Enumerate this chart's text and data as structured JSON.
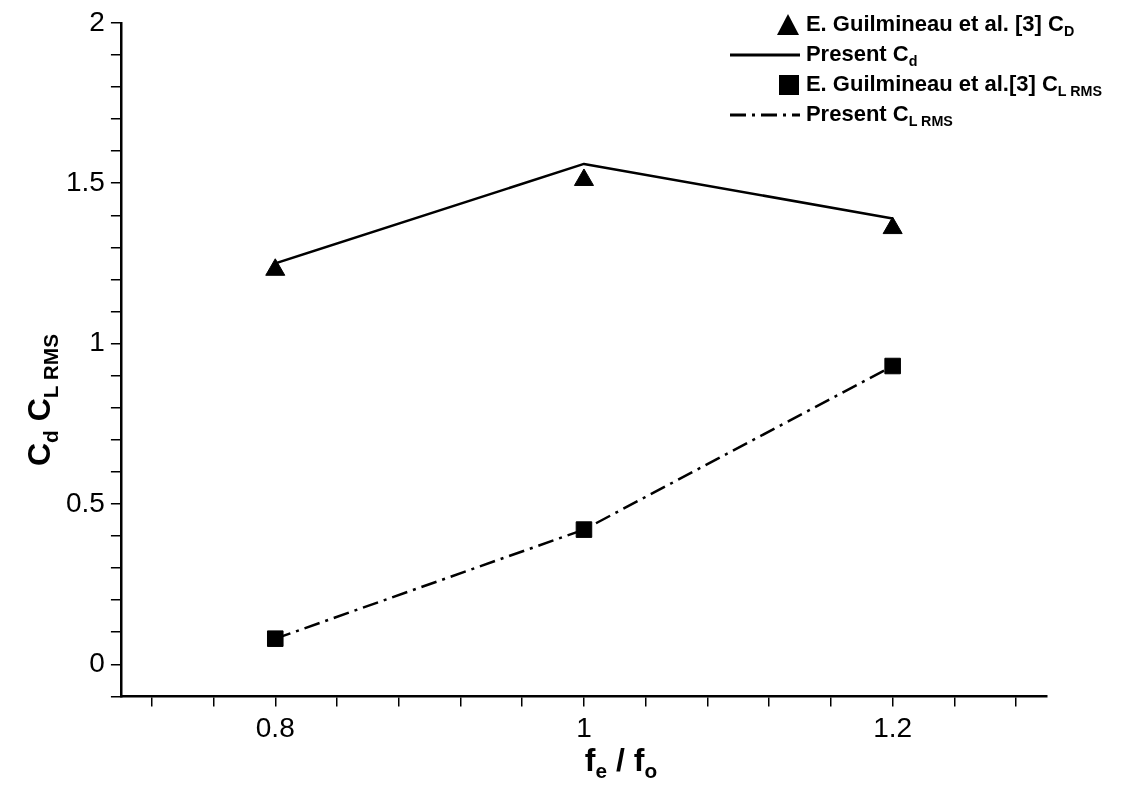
{
  "chart_data": {
    "type": "line",
    "xlabel": "f$_{e}$ / f$_{o}$",
    "ylabel": "C$_{d}$  C$_{L RMS}$",
    "x": [
      0.8,
      1.0,
      1.2
    ],
    "series": [
      {
        "name": "E. Guilmineau et al. [3] C$_{D}$",
        "type": "scatter",
        "color": "#000000",
        "marker": "triangle",
        "values": [
          1.23,
          1.51,
          1.36
        ]
      },
      {
        "name": "Present C$_{d}$",
        "type": "line",
        "color": "#000000",
        "marker": "none",
        "line_style": "solid",
        "values": [
          1.25,
          1.56,
          1.39
        ]
      },
      {
        "name": "E. Guilmineau et al.[3] C$_{L RMS}$",
        "type": "scatter",
        "color": "#000000",
        "marker": "square",
        "values": [
          0.08,
          0.42,
          0.93
        ]
      },
      {
        "name": "Present C$_{L RMS}$",
        "type": "line",
        "color": "#000000",
        "marker": "none",
        "line_style": "dashed",
        "values": [
          0.08,
          0.42,
          0.93
        ]
      }
    ],
    "xlim": [
      0.7,
      1.3
    ],
    "xticks": [
      {
        "value": 0.72,
        "label": null
      },
      {
        "value": 0.76,
        "label": null
      },
      0.8,
      {
        "value": 0.84,
        "label": null
      },
      {
        "value": 0.88,
        "label": null
      },
      {
        "value": 0.92,
        "label": null
      },
      {
        "value": 0.96,
        "label": null
      },
      1,
      {
        "value": 1.04,
        "label": null
      },
      {
        "value": 1.08,
        "label": null
      },
      {
        "value": 1.12,
        "label": null
      },
      {
        "value": 1.16,
        "label": null
      },
      1.2,
      {
        "value": 1.24,
        "label": null
      },
      {
        "value": 1.28,
        "label": null
      }
    ],
    "ylim": [
      -0.1,
      2
    ],
    "yticks": [
      {
        "value": -0.1,
        "label": null
      },
      0,
      {
        "value": 0.1,
        "label": null
      },
      {
        "value": 0.2,
        "label": null
      },
      {
        "value": 0.3,
        "label": null
      },
      {
        "value": 0.4,
        "label": null
      },
      0.5,
      {
        "value": 0.6,
        "label": null
      },
      {
        "value": 0.7,
        "label": null
      },
      {
        "value": 0.8,
        "label": null
      },
      {
        "value": 0.9,
        "label": null
      },
      1,
      {
        "value": 1.1,
        "label": null
      },
      {
        "value": 1.2,
        "label": null
      },
      {
        "value": 1.3,
        "label": null
      },
      {
        "value": 1.4,
        "label": null
      },
      1.5,
      {
        "value": 1.6,
        "label": null
      },
      {
        "value": 1.7,
        "label": null
      },
      {
        "value": 1.8,
        "label": null
      },
      {
        "value": 1.9,
        "label": null
      },
      2
    ],
    "grid": false,
    "legend": "top right"
  }
}
